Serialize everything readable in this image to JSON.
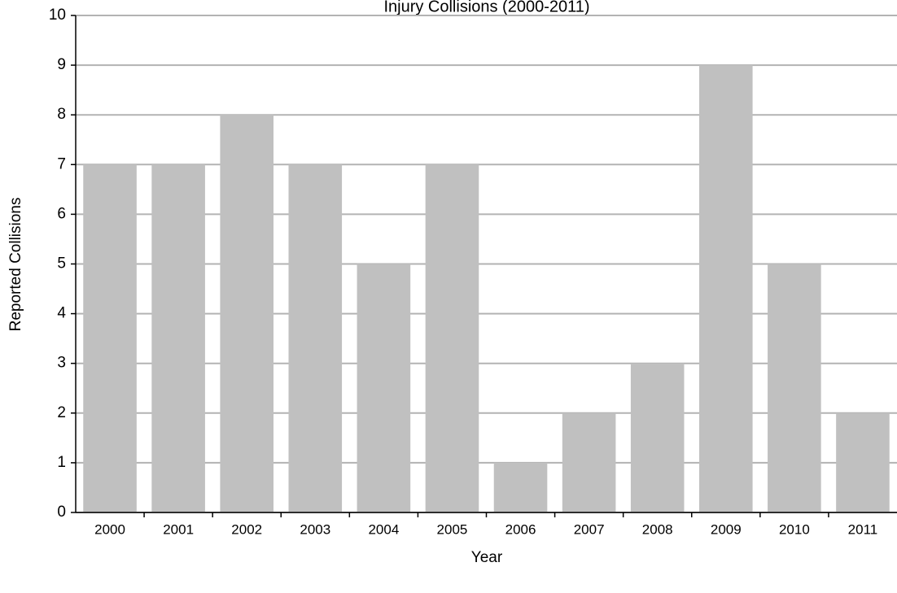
{
  "chart_data": {
    "type": "bar",
    "title": "Injury Collisions (2000-2011)",
    "x_label": "Year",
    "y_label": "Reported Collisions",
    "categories": [
      "2000",
      "2001",
      "2002",
      "2003",
      "2004",
      "2005",
      "2006",
      "2007",
      "2008",
      "2009",
      "2010",
      "2011"
    ],
    "values": [
      7,
      7,
      8,
      7,
      5,
      7,
      1,
      2,
      3,
      9,
      5,
      2
    ],
    "color": "#c0c0c0",
    "ylim": [
      0,
      10
    ],
    "yticks": [
      0,
      1,
      2,
      3,
      4,
      5,
      6,
      7,
      8,
      9,
      10
    ],
    "grid": true
  }
}
